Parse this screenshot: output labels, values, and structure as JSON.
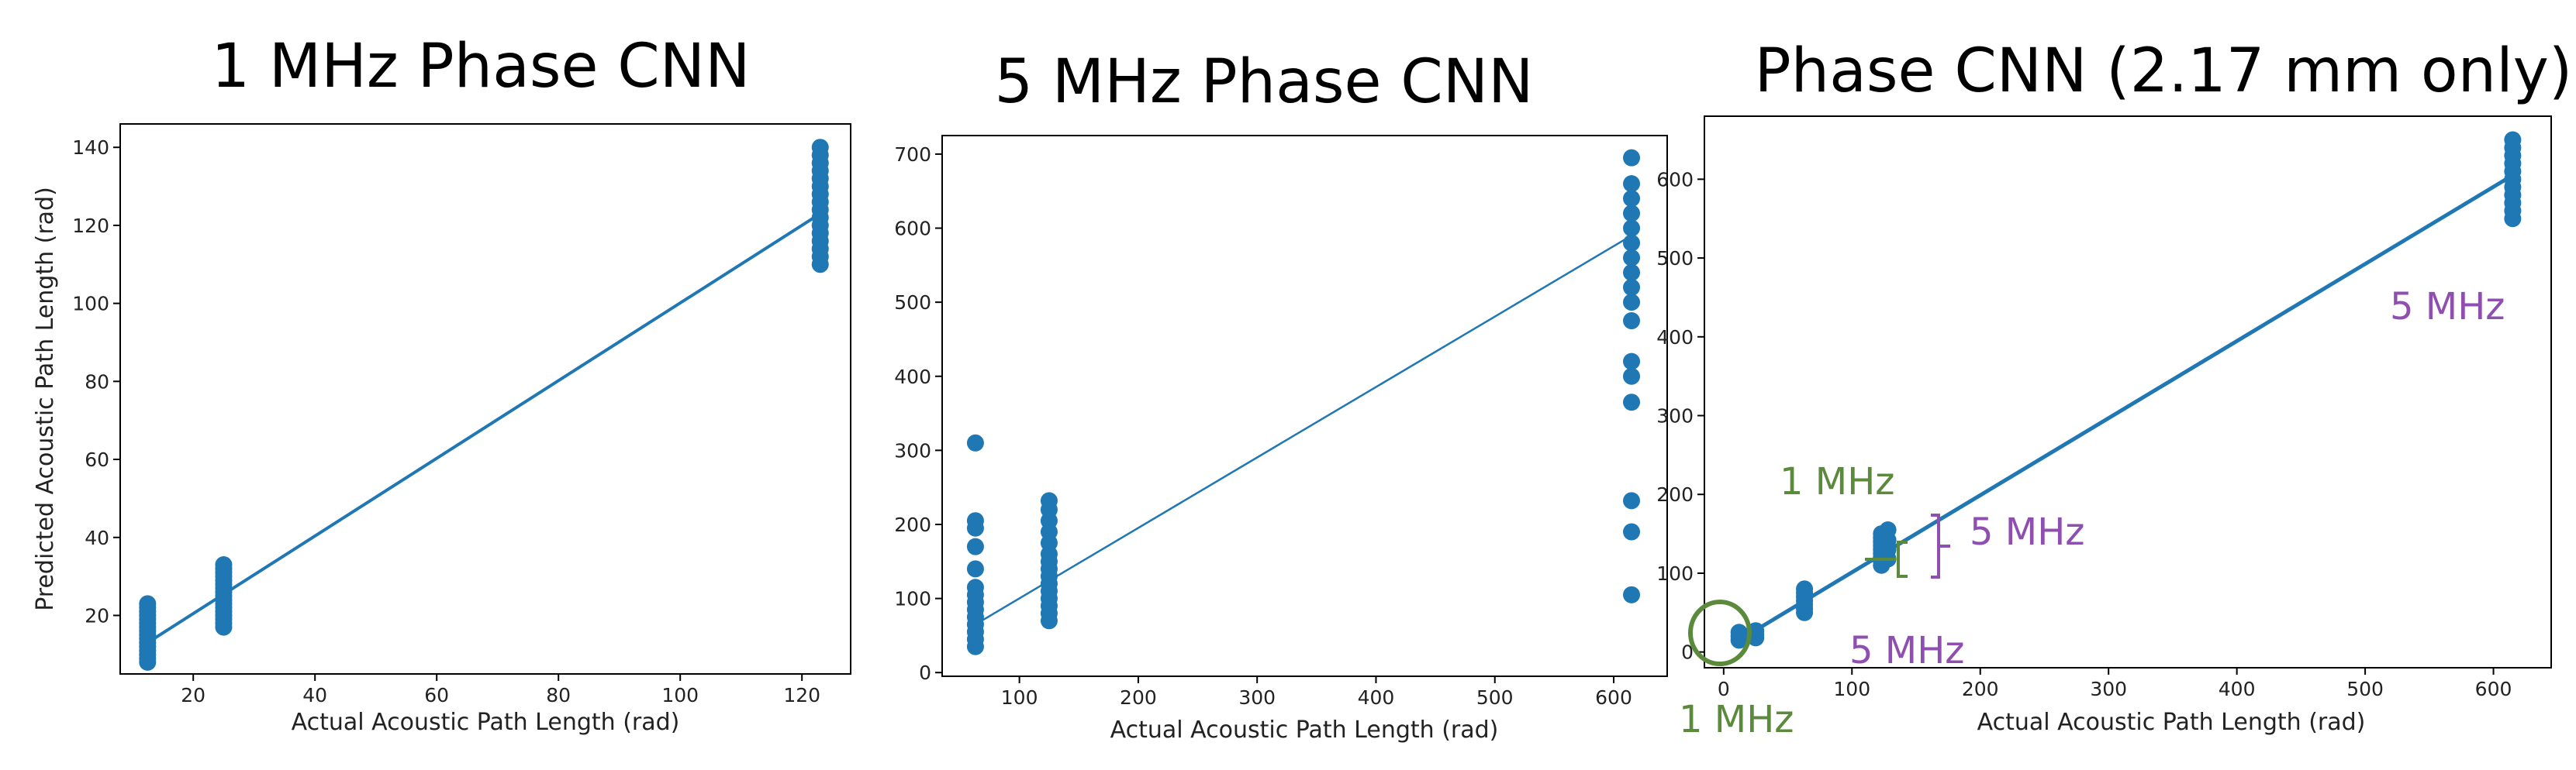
{
  "chart_data": [
    {
      "type": "scatter",
      "title": "1 MHz Phase CNN",
      "xlabel": "Actual Acoustic Path Length (rad)",
      "ylabel": "Predicted Acoustic Path Length (rad)",
      "xlim": [
        8,
        128
      ],
      "ylim": [
        5,
        146
      ],
      "xticks": [
        20,
        40,
        60,
        80,
        100,
        120
      ],
      "yticks": [
        20,
        40,
        60,
        80,
        100,
        120,
        140
      ],
      "fit_line": {
        "x": [
          12.5,
          123
        ],
        "y": [
          13,
          123
        ]
      },
      "series": [
        {
          "points": [
            [
              12.5,
              8
            ],
            [
              12.5,
              9
            ],
            [
              12.5,
              10
            ],
            [
              12.5,
              11
            ],
            [
              12.5,
              12
            ],
            [
              12.5,
              13
            ],
            [
              12.5,
              14
            ],
            [
              12.5,
              15
            ],
            [
              12.5,
              16
            ],
            [
              12.5,
              17
            ],
            [
              12.5,
              18
            ],
            [
              12.5,
              19
            ],
            [
              12.5,
              20
            ],
            [
              12.5,
              21
            ],
            [
              12.5,
              22
            ],
            [
              12.5,
              23
            ],
            [
              25,
              17
            ],
            [
              25,
              18
            ],
            [
              25,
              19
            ],
            [
              25,
              20
            ],
            [
              25,
              21
            ],
            [
              25,
              22
            ],
            [
              25,
              23
            ],
            [
              25,
              24
            ],
            [
              25,
              25
            ],
            [
              25,
              26
            ],
            [
              25,
              27
            ],
            [
              25,
              28
            ],
            [
              25,
              29
            ],
            [
              25,
              30
            ],
            [
              25,
              31
            ],
            [
              25,
              32
            ],
            [
              25,
              33
            ],
            [
              123,
              110
            ],
            [
              123,
              112
            ],
            [
              123,
              114
            ],
            [
              123,
              116
            ],
            [
              123,
              118
            ],
            [
              123,
              120
            ],
            [
              123,
              122
            ],
            [
              123,
              124
            ],
            [
              123,
              126
            ],
            [
              123,
              128
            ],
            [
              123,
              130
            ],
            [
              123,
              132
            ],
            [
              123,
              134
            ],
            [
              123,
              136
            ],
            [
              123,
              138
            ],
            [
              123,
              140
            ]
          ]
        }
      ]
    },
    {
      "type": "scatter",
      "title": "5 MHz Phase CNN",
      "xlabel": "Actual Acoustic Path Length (rad)",
      "ylabel": "",
      "xlim": [
        35,
        645
      ],
      "ylim": [
        -5,
        725
      ],
      "xticks": [
        100,
        200,
        300,
        400,
        500,
        600
      ],
      "yticks": [
        0,
        100,
        200,
        300,
        400,
        500,
        600,
        700
      ],
      "fit_line": {
        "x": [
          63,
          615
        ],
        "y": [
          65,
          590
        ]
      },
      "series": [
        {
          "points": [
            [
              63,
              35
            ],
            [
              63,
              45
            ],
            [
              63,
              55
            ],
            [
              63,
              65
            ],
            [
              63,
              75
            ],
            [
              63,
              85
            ],
            [
              63,
              95
            ],
            [
              63,
              105
            ],
            [
              63,
              115
            ],
            [
              63,
              140
            ],
            [
              63,
              170
            ],
            [
              63,
              195
            ],
            [
              63,
              205
            ],
            [
              63,
              310
            ],
            [
              125,
              70
            ],
            [
              125,
              80
            ],
            [
              125,
              90
            ],
            [
              125,
              100
            ],
            [
              125,
              110
            ],
            [
              125,
              120
            ],
            [
              125,
              130
            ],
            [
              125,
              140
            ],
            [
              125,
              150
            ],
            [
              125,
              160
            ],
            [
              125,
              175
            ],
            [
              125,
              190
            ],
            [
              125,
              205
            ],
            [
              125,
              220
            ],
            [
              125,
              232
            ],
            [
              615,
              105
            ],
            [
              615,
              190
            ],
            [
              615,
              232
            ],
            [
              615,
              365
            ],
            [
              615,
              400
            ],
            [
              615,
              420
            ],
            [
              615,
              475
            ],
            [
              615,
              500
            ],
            [
              615,
              520
            ],
            [
              615,
              540
            ],
            [
              615,
              560
            ],
            [
              615,
              580
            ],
            [
              615,
              600
            ],
            [
              615,
              620
            ],
            [
              615,
              640
            ],
            [
              615,
              660
            ],
            [
              615,
              695
            ]
          ]
        }
      ]
    },
    {
      "type": "scatter",
      "title": "Phase CNN (2.17 mm only)",
      "xlabel": "Actual Acoustic Path Length (rad)",
      "ylabel": "",
      "xlim": [
        -15,
        645
      ],
      "ylim": [
        -20,
        680
      ],
      "xticks": [
        0,
        100,
        200,
        300,
        400,
        500,
        600
      ],
      "yticks": [
        0,
        100,
        200,
        300,
        400,
        500,
        600
      ],
      "fit_line": {
        "x": [
          12,
          615
        ],
        "y": [
          15,
          605
        ]
      },
      "annotations": [
        {
          "text": "1 MHz",
          "color": "#5b8a3c"
        },
        {
          "text": "1 MHz",
          "color": "#5b8a3c"
        },
        {
          "text": "5 MHz",
          "color": "#8e4fb0"
        },
        {
          "text": "5 MHz",
          "color": "#8e4fb0"
        },
        {
          "text": "5 MHz",
          "color": "#8e4fb0"
        }
      ],
      "series": [
        {
          "points": [
            [
              12,
              15
            ],
            [
              12,
              20
            ],
            [
              12,
              25
            ],
            [
              25,
              18
            ],
            [
              25,
              22
            ],
            [
              25,
              27
            ],
            [
              18,
              20
            ],
            [
              63,
              50
            ],
            [
              63,
              55
            ],
            [
              63,
              60
            ],
            [
              63,
              65
            ],
            [
              63,
              70
            ],
            [
              63,
              75
            ],
            [
              63,
              80
            ],
            [
              123,
              110
            ],
            [
              123,
              115
            ],
            [
              123,
              120
            ],
            [
              123,
              125
            ],
            [
              123,
              130
            ],
            [
              123,
              135
            ],
            [
              123,
              140
            ],
            [
              123,
              145
            ],
            [
              123,
              150
            ],
            [
              128,
              118
            ],
            [
              128,
              130
            ],
            [
              128,
              142
            ],
            [
              128,
              155
            ],
            [
              615,
              550
            ],
            [
              615,
              560
            ],
            [
              615,
              570
            ],
            [
              615,
              580
            ],
            [
              615,
              590
            ],
            [
              615,
              600
            ],
            [
              615,
              610
            ],
            [
              615,
              620
            ],
            [
              615,
              630
            ],
            [
              615,
              640
            ],
            [
              615,
              650
            ]
          ]
        }
      ]
    }
  ],
  "colors": {
    "points": "#1f77b4",
    "line": "#1f77b4",
    "green": "#5b8a3c",
    "purple": "#8e4fb0"
  }
}
